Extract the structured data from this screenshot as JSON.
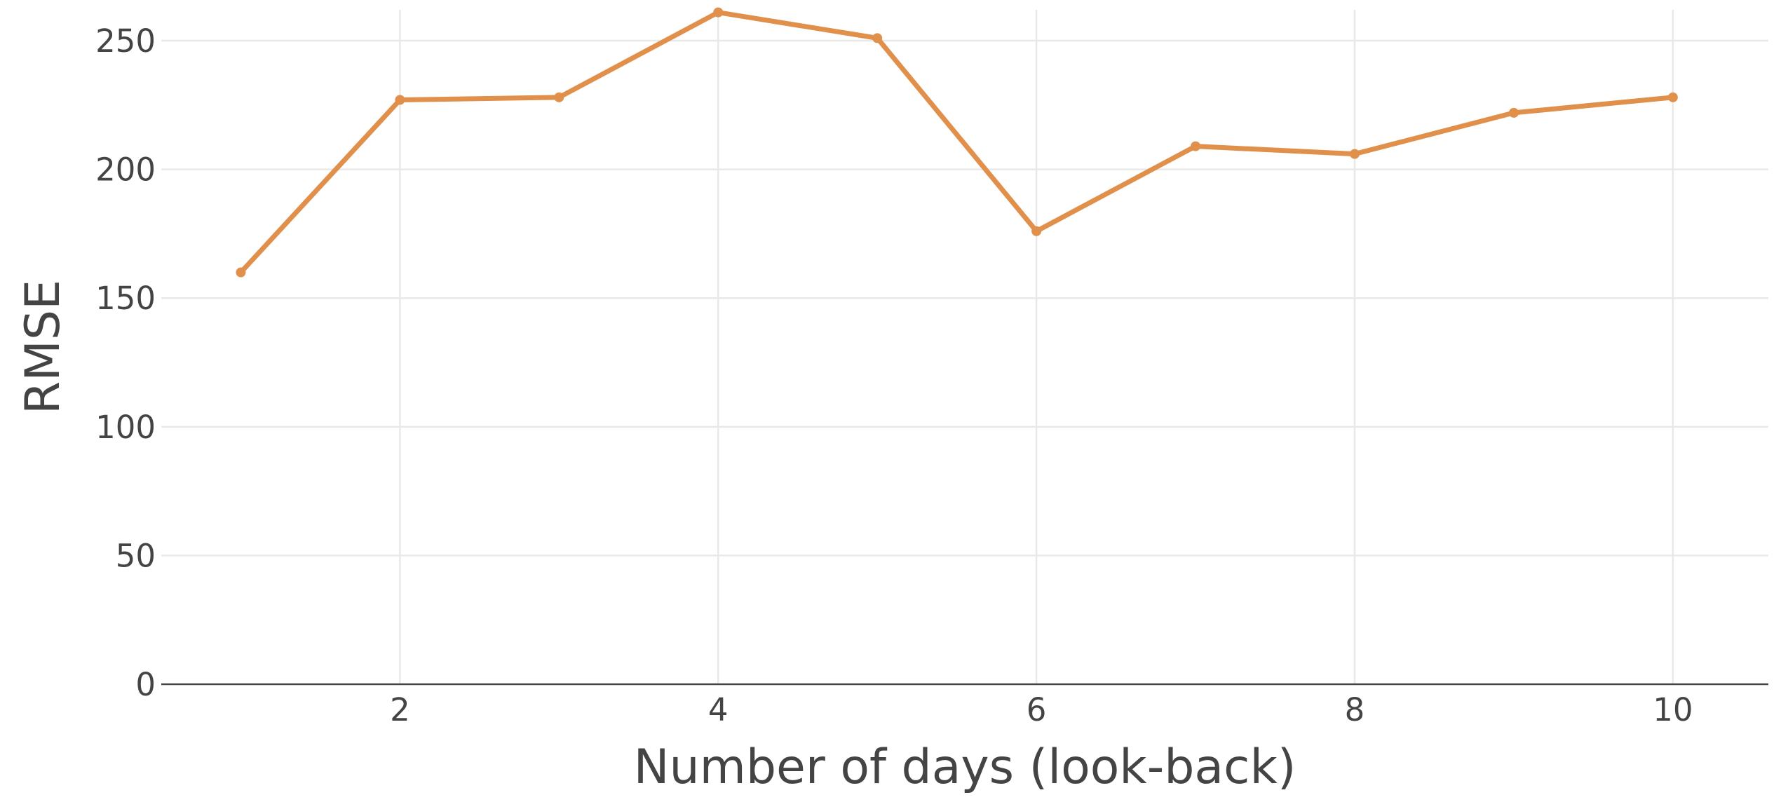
{
  "chart_data": {
    "type": "line",
    "xlabel": "Number of days (look-back)",
    "ylabel": "RMSE",
    "xlim": [
      0.5,
      10.6
    ],
    "ylim": [
      0,
      262
    ],
    "x_ticks": [
      2,
      4,
      6,
      8,
      10
    ],
    "y_ticks": [
      0,
      50,
      100,
      150,
      200,
      250
    ],
    "grid": true,
    "legend": "none",
    "series": [
      {
        "color": "#e0904a",
        "x": [
          1,
          2,
          3,
          4,
          5,
          6,
          7,
          8,
          9,
          10
        ],
        "y": [
          160,
          227,
          228,
          261,
          251,
          176,
          209,
          206,
          222,
          228
        ]
      }
    ]
  }
}
